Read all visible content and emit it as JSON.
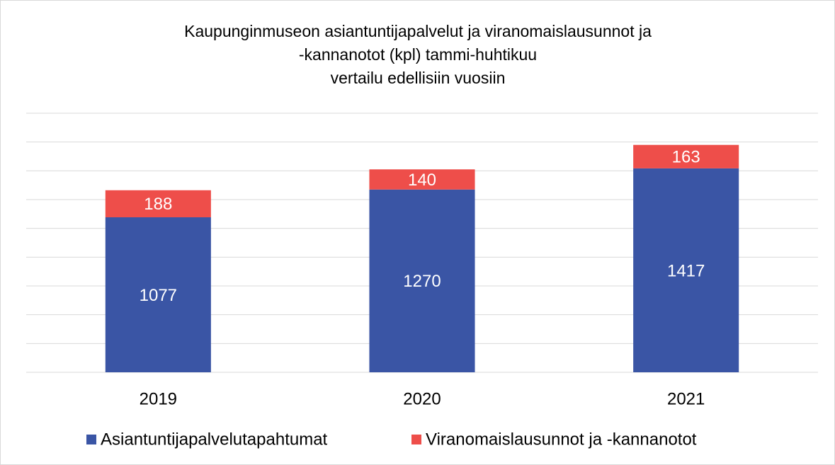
{
  "chart_data": {
    "type": "stacked_bar",
    "title": [
      "Kaupunginmuseon asiantuntijapalvelut ja viranomaislausunnot ja",
      "-kannanotot (kpl) tammi-huhtikuu",
      "vertailu edellisiin vuosiin"
    ],
    "categories": [
      "2019",
      "2020",
      "2021"
    ],
    "series": [
      {
        "name": "Asiantuntijapalvelutapahtumat",
        "color": "#3a55a5",
        "values": [
          1077,
          1270,
          1417
        ]
      },
      {
        "name": "Viranomaislausunnot ja -kannanotot",
        "color": "#ee4e4a",
        "values": [
          188,
          140,
          163
        ]
      }
    ],
    "ylim": [
      0,
      1800
    ],
    "yticks": [
      0,
      200,
      400,
      600,
      800,
      1000,
      1200,
      1400,
      1600,
      1800
    ],
    "grid": true,
    "legend": "bottom"
  }
}
